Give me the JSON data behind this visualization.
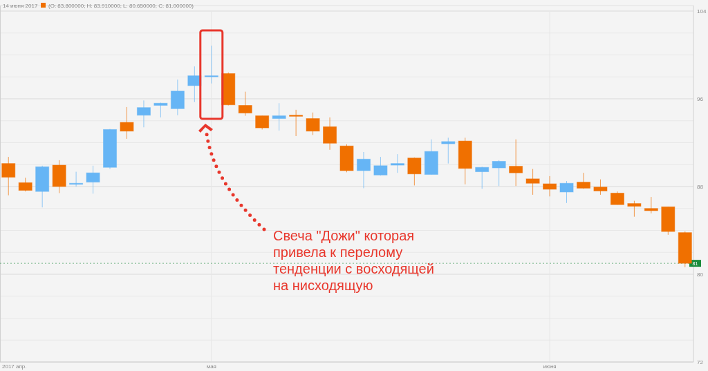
{
  "chart_data": {
    "type": "candlestick",
    "categories": [
      "2017 апр.",
      null,
      null,
      null,
      null,
      null,
      null,
      null,
      null,
      null,
      null,
      null,
      "мая",
      null,
      null,
      null,
      null,
      null,
      null,
      null,
      null,
      null,
      null,
      null,
      null,
      null,
      null,
      null,
      null,
      null,
      null,
      null,
      "июня",
      null,
      null,
      null,
      null,
      null,
      null,
      null,
      null
    ],
    "ohlc": [
      [
        90.1,
        90.7,
        87.2,
        88.85
      ],
      [
        88.35,
        88.8,
        87.55,
        87.65
      ],
      [
        87.55,
        89.9,
        86.1,
        89.8
      ],
      [
        89.95,
        90.4,
        87.4,
        88.0
      ],
      [
        88.2,
        89.35,
        88.0,
        88.3
      ],
      [
        88.4,
        89.9,
        87.35,
        89.25
      ],
      [
        89.75,
        93.25,
        89.6,
        93.2
      ],
      [
        93.85,
        95.25,
        92.35,
        93.05
      ],
      [
        94.5,
        95.85,
        93.4,
        95.2
      ],
      [
        95.4,
        95.65,
        94.3,
        95.6
      ],
      [
        95.1,
        97.75,
        94.5,
        96.7
      ],
      [
        97.2,
        98.95,
        95.7,
        98.1
      ],
      [
        98.05,
        100.85,
        97.4,
        98.1
      ],
      [
        98.3,
        98.4,
        95.4,
        95.45
      ],
      [
        95.4,
        96.65,
        94.45,
        94.7
      ],
      [
        94.45,
        94.45,
        93.2,
        93.35
      ],
      [
        94.2,
        95.6,
        93.1,
        94.45
      ],
      [
        94.5,
        95.0,
        92.6,
        94.45
      ],
      [
        94.2,
        94.75,
        92.7,
        93.05
      ],
      [
        93.45,
        94.3,
        91.35,
        91.95
      ],
      [
        91.7,
        91.85,
        89.3,
        89.45
      ],
      [
        89.45,
        91.15,
        87.85,
        90.5
      ],
      [
        89.05,
        90.7,
        89.0,
        89.9
      ],
      [
        89.95,
        90.95,
        89.25,
        90.1
      ],
      [
        90.6,
        90.65,
        88.1,
        89.15
      ],
      [
        89.1,
        92.3,
        89.1,
        91.2
      ],
      [
        91.9,
        92.45,
        90.1,
        92.1
      ],
      [
        92.15,
        92.45,
        88.2,
        89.65
      ],
      [
        89.35,
        89.8,
        87.8,
        89.75
      ],
      [
        89.7,
        90.4,
        88.05,
        90.3
      ],
      [
        89.85,
        92.3,
        88.05,
        89.25
      ],
      [
        88.7,
        89.6,
        87.25,
        88.3
      ],
      [
        88.25,
        88.95,
        87.1,
        87.75
      ],
      [
        87.5,
        88.5,
        86.5,
        88.3
      ],
      [
        88.4,
        89.25,
        87.8,
        87.85
      ],
      [
        87.95,
        88.65,
        87.25,
        87.6
      ],
      [
        87.4,
        87.55,
        86.35,
        86.35
      ],
      [
        86.45,
        86.7,
        85.25,
        86.2
      ],
      [
        86.0,
        87.05,
        85.55,
        85.8
      ],
      [
        86.15,
        86.15,
        83.6,
        83.9
      ],
      [
        83.8,
        83.91,
        80.65,
        81.0
      ]
    ],
    "colors": [
      "#f07000",
      "#f07000",
      "#66b5f5",
      "#f07000",
      "#66b5f5",
      "#66b5f5",
      "#66b5f5",
      "#f07000",
      "#66b5f5",
      "#66b5f5",
      "#66b5f5",
      "#66b5f5",
      "#66b5f5",
      "#f07000",
      "#f07000",
      "#f07000",
      "#66b5f5",
      "#f07000",
      "#f07000",
      "#f07000",
      "#f07000",
      "#66b5f5",
      "#66b5f5",
      "#66b5f5",
      "#f07000",
      "#66b5f5",
      "#66b5f5",
      "#f07000",
      "#66b5f5",
      "#66b5f5",
      "#f07000",
      "#f07000",
      "#f07000",
      "#66b5f5",
      "#f07000",
      "#f07000",
      "#f07000",
      "#f07000",
      "#f07000",
      "#f07000",
      "#f07000"
    ],
    "ylim": [
      72,
      104
    ],
    "yticks": [
      72,
      {
        "value": 74,
        "label": null
      },
      {
        "value": 76,
        "label": null
      },
      {
        "value": 78,
        "label": null
      },
      80,
      {
        "value": 82,
        "label": null
      },
      {
        "value": 84,
        "label": null
      },
      {
        "value": 86,
        "label": null
      },
      88,
      {
        "value": 90,
        "label": null
      },
      {
        "value": 92,
        "label": null
      },
      {
        "value": 94,
        "label": null
      },
      96,
      {
        "value": 98,
        "label": null
      },
      {
        "value": 100,
        "label": null
      },
      {
        "value": 102,
        "label": null
      },
      104
    ],
    "grid": true,
    "ref_lines": [
      {
        "axis": "y",
        "value": 81,
        "label": "81",
        "color": "#1a8c3c",
        "line_style": "dotted"
      }
    ],
    "annotations": [
      "14 июня 2017",
      "(O: 83.800000; H: 83.910000; L: 80.650000; C: 81.000000)",
      "Свеча \"Дожи\" которая\nпривела к перелому\nтенденции с восходящей\nна нисходящую"
    ]
  }
}
